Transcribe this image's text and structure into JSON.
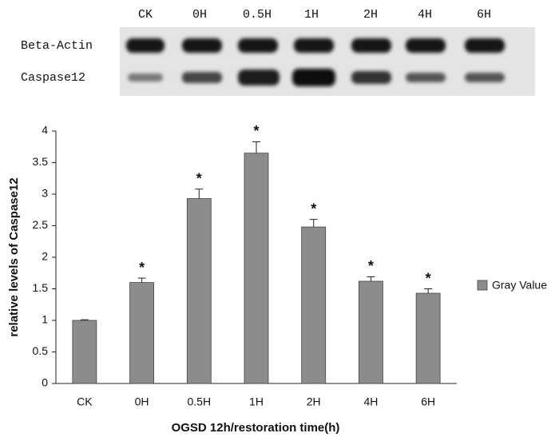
{
  "blot": {
    "lanes": [
      "CK",
      "0H",
      "0.5H",
      "1H",
      "2H",
      "4H",
      "6H"
    ],
    "rows": [
      "Beta-Actin",
      "Caspase12"
    ]
  },
  "chart_data": {
    "type": "bar",
    "categories": [
      "CK",
      "0H",
      "0.5H",
      "1H",
      "2H",
      "4H",
      "6H"
    ],
    "series": [
      {
        "name": "Gray Value",
        "color": "#8c8c8c",
        "values": [
          1.0,
          1.6,
          2.93,
          3.65,
          2.48,
          1.62,
          1.43
        ],
        "errors": [
          0.01,
          0.07,
          0.15,
          0.18,
          0.12,
          0.07,
          0.07
        ]
      }
    ],
    "annotations": [
      null,
      "*",
      "*",
      "*",
      "*",
      "*",
      "*"
    ],
    "ylim": [
      0,
      4
    ],
    "yticks": [
      0,
      0.5,
      1,
      1.5,
      2,
      2.5,
      3,
      3.5,
      4
    ],
    "ylabel": "relative levels of Caspase12",
    "xlabel": "OGSD 12h/restoration time(h)",
    "legend": "right"
  }
}
